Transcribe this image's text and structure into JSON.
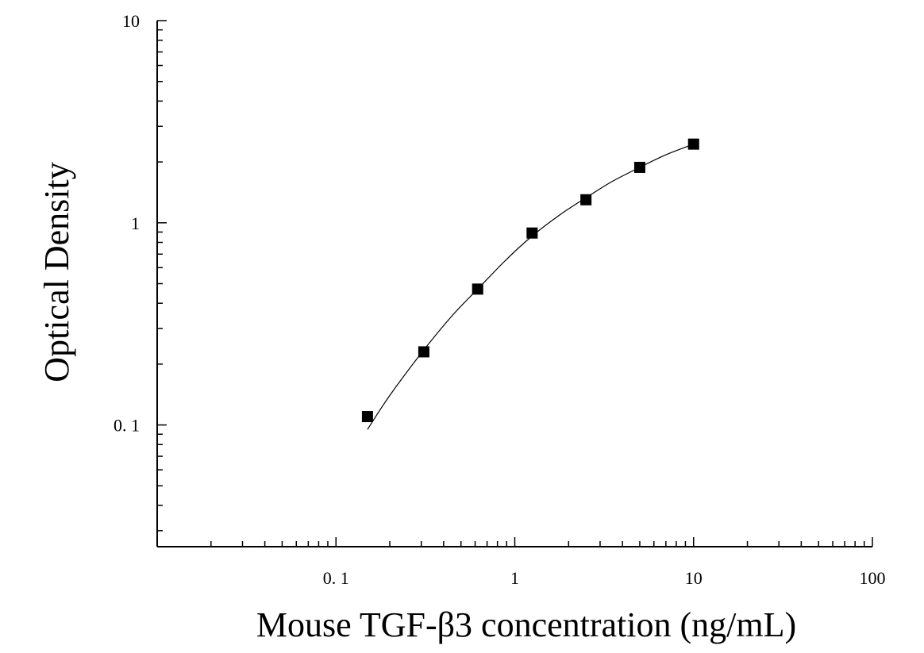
{
  "chart_data": {
    "type": "scatter",
    "title": "",
    "xlabel": "Mouse TGF-β3 concentration (ng/mL)",
    "ylabel": "Optical Density",
    "x_scale": "log",
    "y_scale": "log",
    "xlim": [
      0.01,
      100
    ],
    "ylim": [
      0.025,
      10
    ],
    "grid": false,
    "x_tick_labels": [
      {
        "value": 0.1,
        "label": "0. 1"
      },
      {
        "value": 1,
        "label": "1"
      },
      {
        "value": 10,
        "label": "10"
      },
      {
        "value": 100,
        "label": "100"
      }
    ],
    "y_tick_labels": [
      {
        "value": 0.1,
        "label": "0. 1"
      },
      {
        "value": 1,
        "label": "1"
      },
      {
        "value": 10,
        "label": "10"
      }
    ],
    "series": [
      {
        "type": "scatter",
        "marker": "square",
        "color": "#000000",
        "x": [
          0.15,
          0.31,
          0.62,
          1.25,
          2.5,
          5,
          10
        ],
        "y": [
          0.11,
          0.23,
          0.47,
          0.89,
          1.3,
          1.88,
          2.45
        ]
      },
      {
        "type": "line",
        "color": "#000000",
        "fit": "4-parameter logistic curve",
        "x": [
          0.15,
          0.2,
          0.31,
          0.45,
          0.62,
          0.9,
          1.25,
          1.8,
          2.5,
          3.5,
          5,
          7,
          10
        ],
        "y": [
          0.095,
          0.14,
          0.235,
          0.35,
          0.47,
          0.66,
          0.86,
          1.1,
          1.33,
          1.6,
          1.88,
          2.17,
          2.45
        ]
      }
    ]
  }
}
